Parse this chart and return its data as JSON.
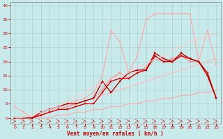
{
  "xlabel": "Vent moyen/en rafales ( km/h )",
  "xlim": [
    -0.5,
    23.5
  ],
  "ylim": [
    -2,
    41
  ],
  "yticks": [
    0,
    5,
    10,
    15,
    20,
    25,
    30,
    35,
    40
  ],
  "xticks": [
    0,
    1,
    2,
    3,
    4,
    5,
    6,
    7,
    8,
    9,
    10,
    11,
    12,
    13,
    14,
    15,
    16,
    17,
    18,
    19,
    20,
    21,
    22,
    23
  ],
  "bg_color": "#c8eaea",
  "grid_color": "#a0c8c8",
  "series": [
    {
      "x": [
        0,
        1,
        2,
        3,
        4,
        5,
        6,
        7,
        8,
        9,
        10,
        11,
        12,
        13,
        14,
        15,
        16,
        17,
        18,
        19,
        20,
        21,
        22,
        23
      ],
      "y": [
        0,
        0,
        0,
        0,
        0,
        1,
        1,
        2,
        2,
        3,
        3,
        4,
        4,
        5,
        5,
        6,
        6,
        7,
        7,
        8,
        8,
        9,
        9,
        10
      ],
      "color": "#ffaaaa",
      "linewidth": 0.8,
      "marker": null,
      "linestyle": "-"
    },
    {
      "x": [
        0,
        1,
        2,
        3,
        4,
        5,
        6,
        7,
        8,
        9,
        10,
        11,
        12,
        13,
        14,
        15,
        16,
        17,
        18,
        19,
        20,
        21,
        22,
        23
      ],
      "y": [
        0,
        0,
        0,
        1,
        2,
        3,
        4,
        5,
        6,
        7,
        8,
        9,
        10,
        11,
        12,
        13,
        14,
        15,
        16,
        17,
        18,
        19,
        20,
        21
      ],
      "color": "#ffbbbb",
      "linewidth": 0.8,
      "marker": null,
      "linestyle": "-"
    },
    {
      "x": [
        0,
        1,
        2,
        3,
        4,
        5,
        6,
        7,
        8,
        9,
        10,
        11,
        12,
        13,
        14,
        15,
        16,
        17,
        18,
        19,
        20,
        21,
        22,
        23
      ],
      "y": [
        4,
        2,
        0,
        2,
        3,
        4,
        5,
        6,
        7,
        9,
        15,
        31,
        27,
        16,
        22,
        35,
        37,
        37,
        37,
        37,
        37,
        20,
        31,
        19
      ],
      "color": "#ffaaaa",
      "linewidth": 0.8,
      "marker": "s",
      "markersize": 1.8,
      "linestyle": "-"
    },
    {
      "x": [
        0,
        1,
        2,
        3,
        4,
        5,
        6,
        7,
        8,
        9,
        10,
        11,
        12,
        13,
        14,
        15,
        16,
        17,
        18,
        19,
        20,
        21,
        22,
        23
      ],
      "y": [
        0,
        0,
        0,
        1,
        2,
        3,
        4,
        5,
        6,
        7,
        10,
        14,
        16,
        14,
        16,
        18,
        21,
        20,
        21,
        22,
        20,
        20,
        15,
        7
      ],
      "color": "#ff8888",
      "linewidth": 0.8,
      "marker": "s",
      "markersize": 1.8,
      "linestyle": "-"
    },
    {
      "x": [
        0,
        1,
        2,
        3,
        4,
        5,
        6,
        7,
        8,
        9,
        10,
        11,
        12,
        13,
        14,
        15,
        16,
        17,
        18,
        19,
        20,
        21,
        22,
        23
      ],
      "y": [
        0,
        0,
        0,
        1,
        2,
        3,
        3,
        4,
        5,
        5,
        9,
        13,
        14,
        14,
        16,
        17,
        23,
        21,
        20,
        22,
        21,
        20,
        16,
        7
      ],
      "color": "#dd0000",
      "linewidth": 1.0,
      "marker": "s",
      "markersize": 2.0,
      "linestyle": "-"
    },
    {
      "x": [
        0,
        1,
        2,
        3,
        4,
        5,
        6,
        7,
        8,
        9,
        10,
        11,
        12,
        13,
        14,
        15,
        16,
        17,
        18,
        19,
        20,
        21,
        22,
        23
      ],
      "y": [
        0,
        0,
        0,
        2,
        3,
        4,
        5,
        5,
        6,
        7,
        13,
        9,
        13,
        16,
        17,
        17,
        22,
        20,
        20,
        23,
        21,
        20,
        15,
        7
      ],
      "color": "#bb0000",
      "linewidth": 1.0,
      "marker": "s",
      "markersize": 2.0,
      "linestyle": "-"
    },
    {
      "x": [
        0,
        1,
        2,
        3,
        4,
        5,
        6,
        7,
        8,
        9,
        10,
        11,
        12,
        13,
        14,
        15,
        16,
        17,
        18,
        19,
        20,
        21,
        22,
        23
      ],
      "y": [
        0,
        0,
        1,
        2,
        3,
        4,
        6,
        7,
        9,
        11,
        12,
        14,
        15,
        16,
        18,
        19,
        21,
        22,
        24,
        25,
        27,
        28,
        29,
        30
      ],
      "color": "#ffcccc",
      "linewidth": 0.8,
      "marker": null,
      "linestyle": "-"
    }
  ]
}
